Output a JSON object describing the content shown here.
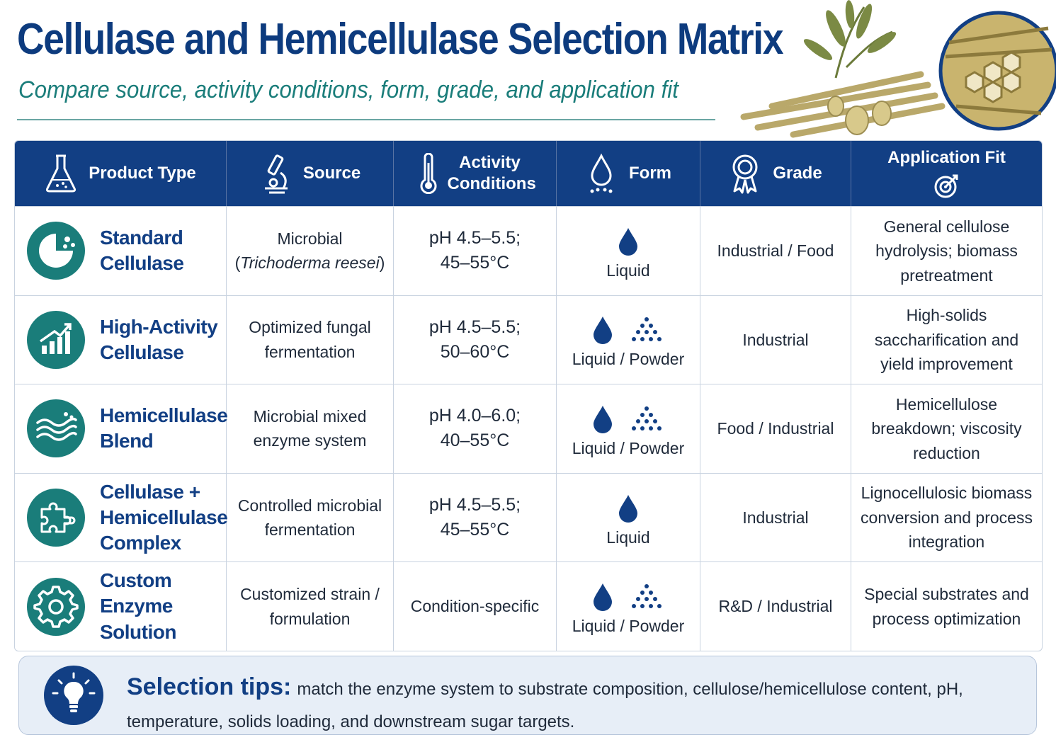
{
  "header": {
    "title": "Cellulase and Hemicellulase Selection Matrix",
    "subtitle": "Compare source, activity conditions, form, grade, and application fit"
  },
  "columns": [
    {
      "label": "Product Type",
      "icon": "flask-icon"
    },
    {
      "label": "Source",
      "icon": "microscope-icon"
    },
    {
      "label": "Activity Conditions",
      "icon": "thermometer-icon"
    },
    {
      "label": "Form",
      "icon": "droplet-icon"
    },
    {
      "label": "Grade",
      "icon": "award-ribbon-icon"
    },
    {
      "label": "Application Fit",
      "icon": "target-icon"
    }
  ],
  "rows": [
    {
      "product_line1": "Standard",
      "product_line2": "Cellulase",
      "product_line3": "",
      "icon": "pie-enzyme-icon",
      "source_line1": "Microbial",
      "source_line2_open": "(",
      "source_line2_italic": "Trichoderma reesei",
      "source_line2_close": ")",
      "cond_line1": "pH 4.5–5.5;",
      "cond_line2": "45–55°C",
      "form": "Liquid",
      "form_glyphs": [
        "droplet-icon"
      ],
      "grade": "Industrial / Food",
      "app_line1": "General cellulose",
      "app_line2": "hydrolysis; biomass",
      "app_line3": "pretreatment"
    },
    {
      "product_line1": "High-Activity",
      "product_line2": "Cellulase",
      "product_line3": "",
      "icon": "growth-chart-icon",
      "source_line1": "Optimized fungal",
      "source_line2": "fermentation",
      "cond_line1": "pH 4.5–5.5;",
      "cond_line2": "50–60°C",
      "form": "Liquid / Powder",
      "form_glyphs": [
        "droplet-icon",
        "powder-icon"
      ],
      "grade": "Industrial",
      "app_line1": "High-solids",
      "app_line2": "saccharification and",
      "app_line3": "yield improvement"
    },
    {
      "product_line1": "Hemicellulase",
      "product_line2": "Blend",
      "product_line3": "",
      "icon": "waves-icon",
      "source_line1": "Microbial mixed",
      "source_line2": "enzyme system",
      "cond_line1": "pH 4.0–6.0;",
      "cond_line2": "40–55°C",
      "form": "Liquid / Powder",
      "form_glyphs": [
        "droplet-icon",
        "powder-icon"
      ],
      "grade": "Food / Industrial",
      "app_line1": "Hemicellulose",
      "app_line2": "breakdown; viscosity",
      "app_line3": "reduction"
    },
    {
      "product_line1": "Cellulase +",
      "product_line2": "Hemicellulase",
      "product_line3": "Complex",
      "icon": "puzzle-icon",
      "source_line1": "Controlled microbial",
      "source_line2": "fermentation",
      "cond_line1": "pH 4.5–5.5;",
      "cond_line2": "45–55°C",
      "form": "Liquid",
      "form_glyphs": [
        "droplet-icon"
      ],
      "grade": "Industrial",
      "app_line1": "Lignocellulosic biomass",
      "app_line2": "conversion and process",
      "app_line3": "integration"
    },
    {
      "product_line1": "Custom Enzyme",
      "product_line2": "Solution",
      "product_line3": "",
      "icon": "gear-icon",
      "source_line1": "Customized strain /",
      "source_line2": "formulation",
      "cond_line1": "Condition-specific",
      "cond_line2": "",
      "form": "Liquid / Powder",
      "form_glyphs": [
        "droplet-icon",
        "powder-icon"
      ],
      "grade": "R&D / Industrial",
      "app_line1": "Special substrates and",
      "app_line2": "process optimization",
      "app_line3": ""
    }
  ],
  "tips": {
    "label": "Selection tips:",
    "text": "match the enzyme system to substrate composition, cellulose/hemicellulose content, pH, temperature, solids loading, and downstream sugar targets.",
    "icon": "lightbulb-icon"
  },
  "colors": {
    "navy": "#123f84",
    "teal": "#1a7d7a",
    "tips_bg": "#e7eef7"
  }
}
